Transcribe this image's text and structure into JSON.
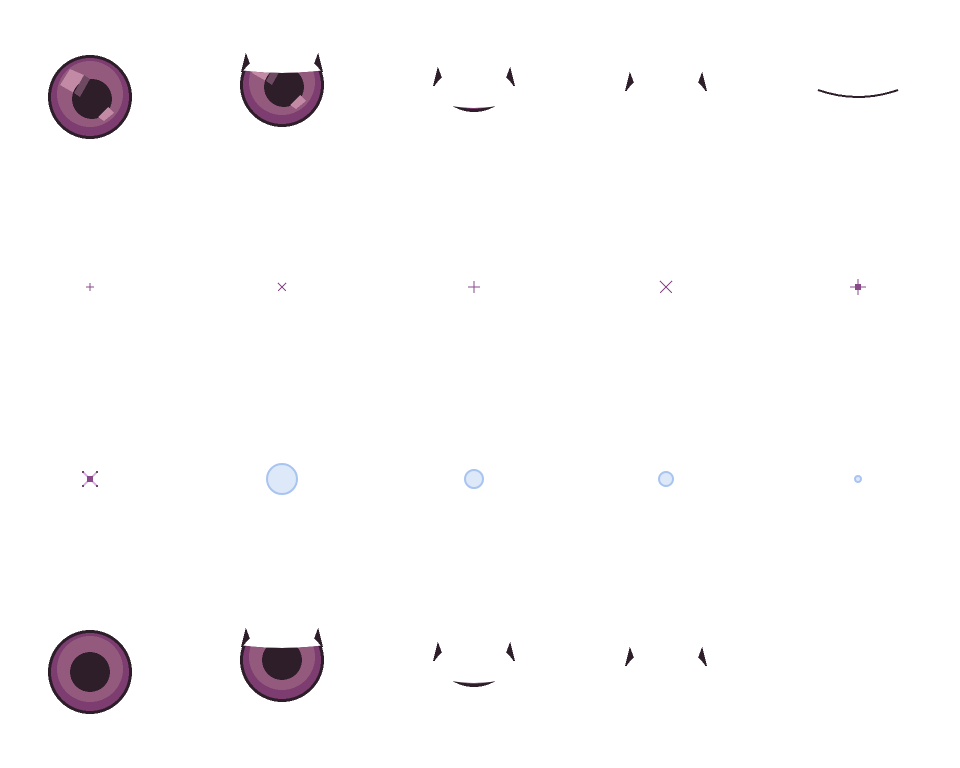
{
  "colors": {
    "outline": "#2e1e2a",
    "iris_outer": "#7e3d70",
    "iris_inner": "#935a7e",
    "pupil": "#2e1e2a",
    "highlight": "#c38aa6",
    "highlight_dark": "#6e4a62",
    "sparkle": "#8a4a8a",
    "sparkle_light": "#d9a6e6",
    "bubble_fill": "#dde8f8",
    "bubble_edge": "#a8c4f0"
  },
  "rows": [
    {
      "frames": [
        {
          "type": "eye",
          "state": "open",
          "highlight": true
        },
        {
          "type": "eye",
          "state": "half",
          "highlight": true
        },
        {
          "type": "eye",
          "state": "narrow",
          "highlight": true
        },
        {
          "type": "eye",
          "state": "slit",
          "highlight": true
        },
        {
          "type": "eye",
          "state": "closed"
        }
      ]
    },
    {
      "frames": [
        {
          "type": "sparkle",
          "shape": "plus",
          "size": 1
        },
        {
          "type": "sparkle",
          "shape": "cross",
          "size": 1
        },
        {
          "type": "sparkle",
          "shape": "plus",
          "size": 2
        },
        {
          "type": "sparkle",
          "shape": "cross",
          "size": 2
        },
        {
          "type": "sparkle",
          "shape": "star",
          "size": 3
        }
      ]
    },
    {
      "frames": [
        {
          "type": "sparkle",
          "shape": "cross-star",
          "size": 3
        },
        {
          "type": "bubble",
          "size": 4
        },
        {
          "type": "bubble",
          "size": 3
        },
        {
          "type": "bubble",
          "size": 2
        },
        {
          "type": "bubble",
          "size": 1
        }
      ]
    },
    {
      "frames": [
        {
          "type": "eye",
          "state": "open",
          "highlight": false
        },
        {
          "type": "eye",
          "state": "half",
          "highlight": false
        },
        {
          "type": "eye",
          "state": "narrow",
          "highlight": false
        },
        {
          "type": "eye",
          "state": "slit",
          "highlight": false
        },
        {
          "type": "empty"
        }
      ]
    }
  ]
}
